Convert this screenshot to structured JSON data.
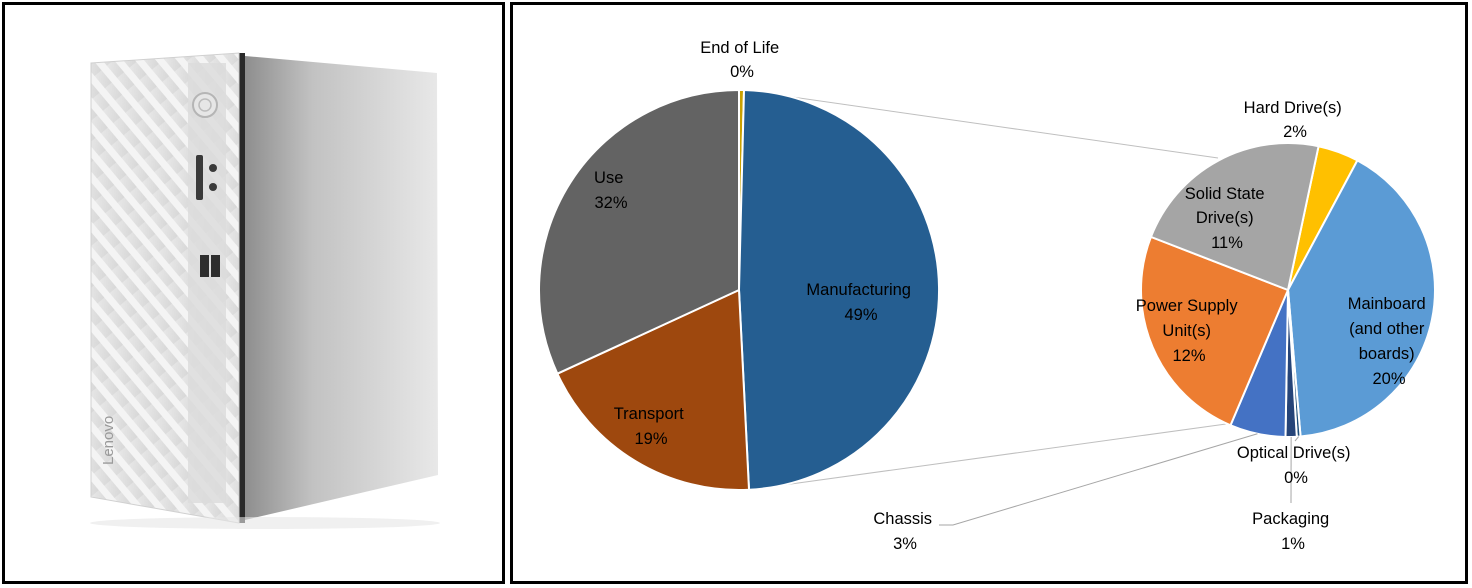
{
  "product_image": {
    "brand_logo_text": "Lenovo",
    "description_icon": "desktop-tower-pc"
  },
  "chart_data": [
    {
      "type": "pie",
      "role": "main",
      "title": "",
      "slices": [
        {
          "name": "End of Life",
          "pct_label": "0%",
          "value": 0.4,
          "color": "#c9a100"
        },
        {
          "name": "Manufacturing",
          "pct_label": "49%",
          "value": 49,
          "color": "#255e91"
        },
        {
          "name": "Transport",
          "pct_label": "19%",
          "value": 19,
          "color": "#9e480e"
        },
        {
          "name": "Use",
          "pct_label": "32%",
          "value": 32,
          "color": "#636363"
        }
      ]
    },
    {
      "type": "pie",
      "role": "breakdown",
      "breakdown_of": "Manufacturing",
      "title": "",
      "slices": [
        {
          "name": "Hard Drive(s)",
          "pct_label": "2%",
          "value": 2.2,
          "color": "#ffc000"
        },
        {
          "name": "Mainboard (and other boards)",
          "pct_label": "20%",
          "value": 20,
          "color": "#5b9bd5"
        },
        {
          "name": "Optical Drive(s)",
          "pct_label": "0%",
          "value": 0.2,
          "color": "#1f4e79"
        },
        {
          "name": "Packaging",
          "pct_label": "1%",
          "value": 0.6,
          "color": "#264478"
        },
        {
          "name": "Chassis",
          "pct_label": "3%",
          "value": 3,
          "color": "#4472c4"
        },
        {
          "name": "Power Supply Unit(s)",
          "pct_label": "12%",
          "value": 12,
          "color": "#ed7d31"
        },
        {
          "name": "Solid State Drive(s)",
          "pct_label": "11%",
          "value": 11,
          "color": "#a5a5a5"
        }
      ]
    }
  ],
  "labels": {
    "end_of_life": {
      "name": "End of Life",
      "pct": "0%"
    },
    "use": {
      "name": "Use",
      "pct": "32%"
    },
    "manufacturing": {
      "name": "Manufacturing",
      "pct": "49%"
    },
    "transport": {
      "name": "Transport",
      "pct": "19%"
    },
    "hard_drive": {
      "name": "Hard Drive(s)",
      "pct": "2%"
    },
    "ssd": {
      "line1": "Solid State",
      "line2": "Drive(s)",
      "pct": "11%"
    },
    "psu": {
      "line1": "Power Supply",
      "line2": "Unit(s)",
      "pct": "12%"
    },
    "mainboard": {
      "line1": "Mainboard",
      "line2": "(and other",
      "line3": "boards)",
      "pct": "20%"
    },
    "optical": {
      "name": "Optical Drive(s)",
      "pct": "0%"
    },
    "packaging": {
      "name": "Packaging",
      "pct": "1%"
    },
    "chassis": {
      "name": "Chassis",
      "pct": "3%"
    }
  }
}
